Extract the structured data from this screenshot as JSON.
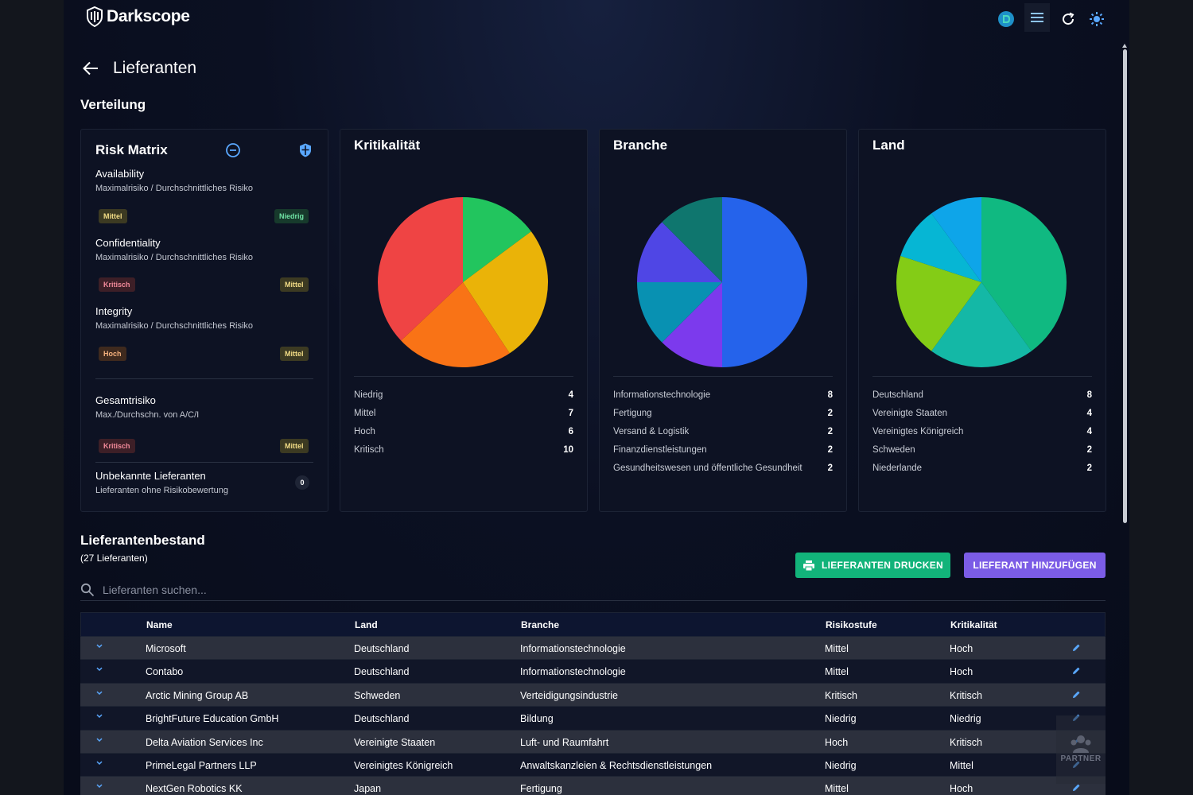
{
  "app": {
    "name": "Darkscope",
    "page_title": "Lieferanten"
  },
  "distribution": {
    "title": "Verteilung"
  },
  "risk_matrix": {
    "title": "Risk Matrix",
    "items": [
      {
        "name": "Availability",
        "sub": "Maximalrisiko / Durchschnittliches Risiko",
        "max": "Mittel",
        "avg": "Niedrig"
      },
      {
        "name": "Confidentiality",
        "sub": "Maximalrisiko / Durchschnittliches Risiko",
        "max": "Kritisch",
        "avg": "Mittel"
      },
      {
        "name": "Integrity",
        "sub": "Maximalrisiko / Durchschnittliches Risiko",
        "max": "Hoch",
        "avg": "Mittel"
      }
    ],
    "total": {
      "name": "Gesamtrisiko",
      "sub": "Max./Durchschn. von A/C/I",
      "max": "Kritisch",
      "avg": "Mittel"
    },
    "unknown": {
      "name": "Unbekannte Lieferanten",
      "sub": "Lieferanten ohne Risikobewertung",
      "count": "0"
    }
  },
  "chart_data": [
    {
      "type": "pie",
      "title": "Kritikalität",
      "categories": [
        "Niedrig",
        "Mittel",
        "Hoch",
        "Kritisch"
      ],
      "values": [
        4,
        7,
        6,
        10
      ],
      "colors": [
        "#22c55e",
        "#eab308",
        "#f97316",
        "#ef4444"
      ]
    },
    {
      "type": "pie",
      "title": "Branche",
      "categories": [
        "Informationstechnologie",
        "Fertigung",
        "Versand & Logistik",
        "Finanzdienstleistungen",
        "Gesundheitswesen und öffentliche Gesundheit"
      ],
      "values": [
        8,
        2,
        2,
        2,
        2
      ],
      "colors": [
        "#2563eb",
        "#7c3aed",
        "#0891b2",
        "#4f46e5",
        "#0f766e"
      ]
    },
    {
      "type": "pie",
      "title": "Land",
      "categories": [
        "Deutschland",
        "Vereinigte Staaten",
        "Vereinigtes Königreich",
        "Schweden",
        "Niederlande"
      ],
      "values": [
        8,
        4,
        4,
        2,
        2
      ],
      "colors": [
        "#10b981",
        "#14b8a6",
        "#84cc16",
        "#06b6d4",
        "#0ea5e9"
      ]
    }
  ],
  "inventory": {
    "title": "Lieferantenbestand",
    "count_label": "(27 Lieferanten)",
    "print_button": "LIEFERANTEN DRUCKEN",
    "add_button": "LIEFERANT HINZUFÜGEN",
    "search_placeholder": "Lieferanten suchen...",
    "columns": {
      "name": "Name",
      "land": "Land",
      "branche": "Branche",
      "risk": "Risikostufe",
      "krit": "Kritikalität"
    },
    "rows": [
      {
        "name": "Microsoft",
        "land": "Deutschland",
        "branche": "Informationstechnologie",
        "risk": "Mittel",
        "krit": "Hoch"
      },
      {
        "name": "Contabo",
        "land": "Deutschland",
        "branche": "Informationstechnologie",
        "risk": "Mittel",
        "krit": "Hoch"
      },
      {
        "name": "Arctic Mining Group AB",
        "land": "Schweden",
        "branche": "Verteidigungsindustrie",
        "risk": "Kritisch",
        "krit": "Kritisch"
      },
      {
        "name": "BrightFuture Education GmbH",
        "land": "Deutschland",
        "branche": "Bildung",
        "risk": "Niedrig",
        "krit": "Niedrig"
      },
      {
        "name": "Delta Aviation Services Inc",
        "land": "Vereinigte Staaten",
        "branche": "Luft- und Raumfahrt",
        "risk": "Hoch",
        "krit": "Kritisch"
      },
      {
        "name": "PrimeLegal Partners LLP",
        "land": "Vereinigtes Königreich",
        "branche": "Anwaltskanzleien & Rechtsdienstleistungen",
        "risk": "Niedrig",
        "krit": "Mittel"
      },
      {
        "name": "NextGen Robotics KK",
        "land": "Japan",
        "branche": "Fertigung",
        "risk": "Mittel",
        "krit": "Hoch"
      }
    ]
  },
  "partner_label": "PARTNER"
}
